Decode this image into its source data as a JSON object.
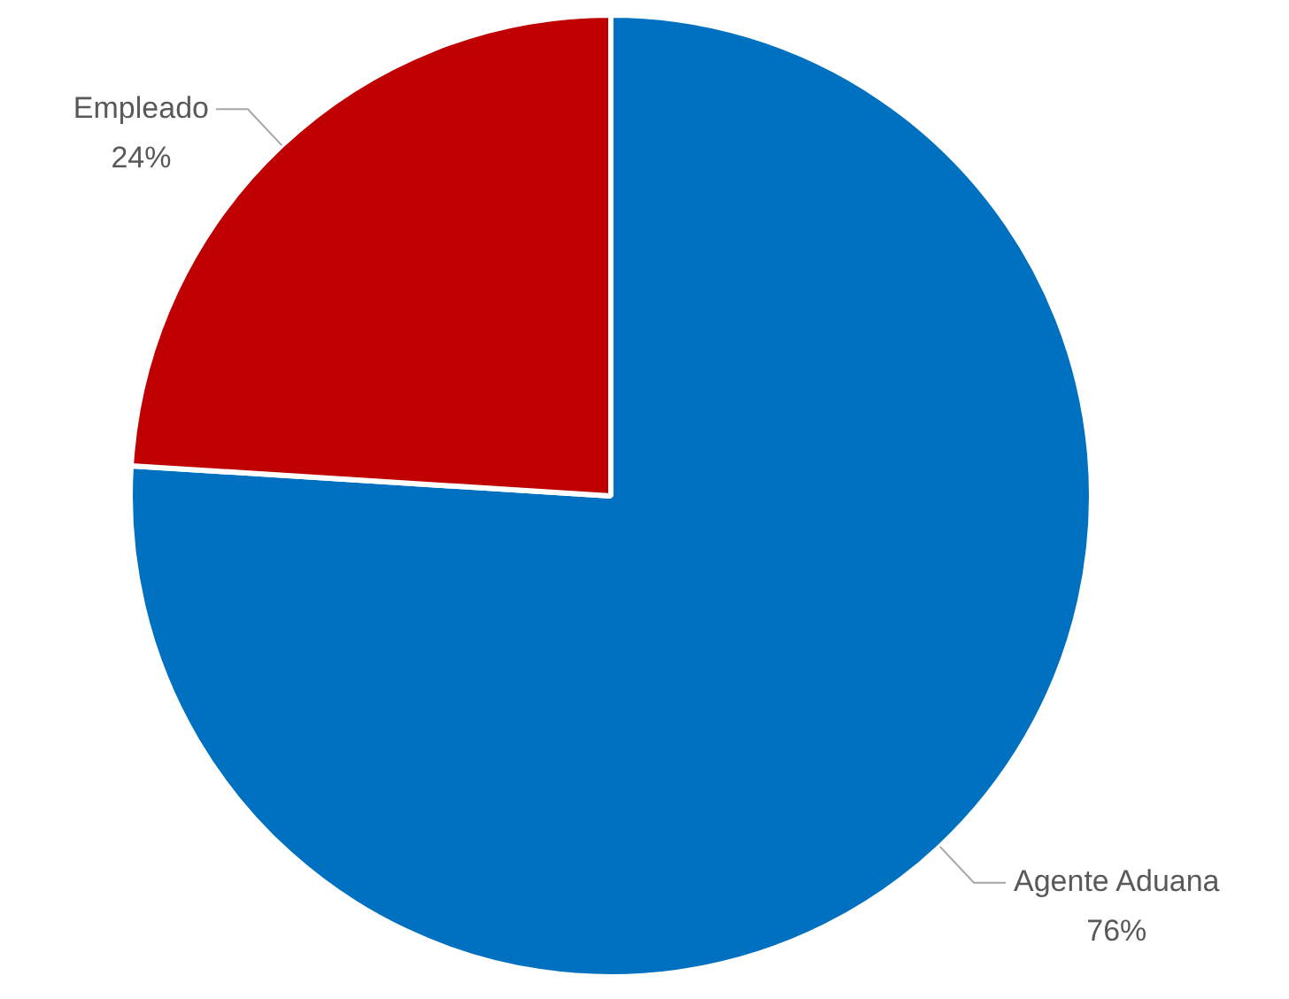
{
  "chart_data": {
    "type": "pie",
    "categories": [
      "Agente Aduana",
      "Empleado"
    ],
    "values": [
      76,
      24
    ],
    "colors": [
      "#0070c0",
      "#c00000"
    ],
    "value_labels": [
      "76%",
      "24%"
    ],
    "legend": false
  }
}
